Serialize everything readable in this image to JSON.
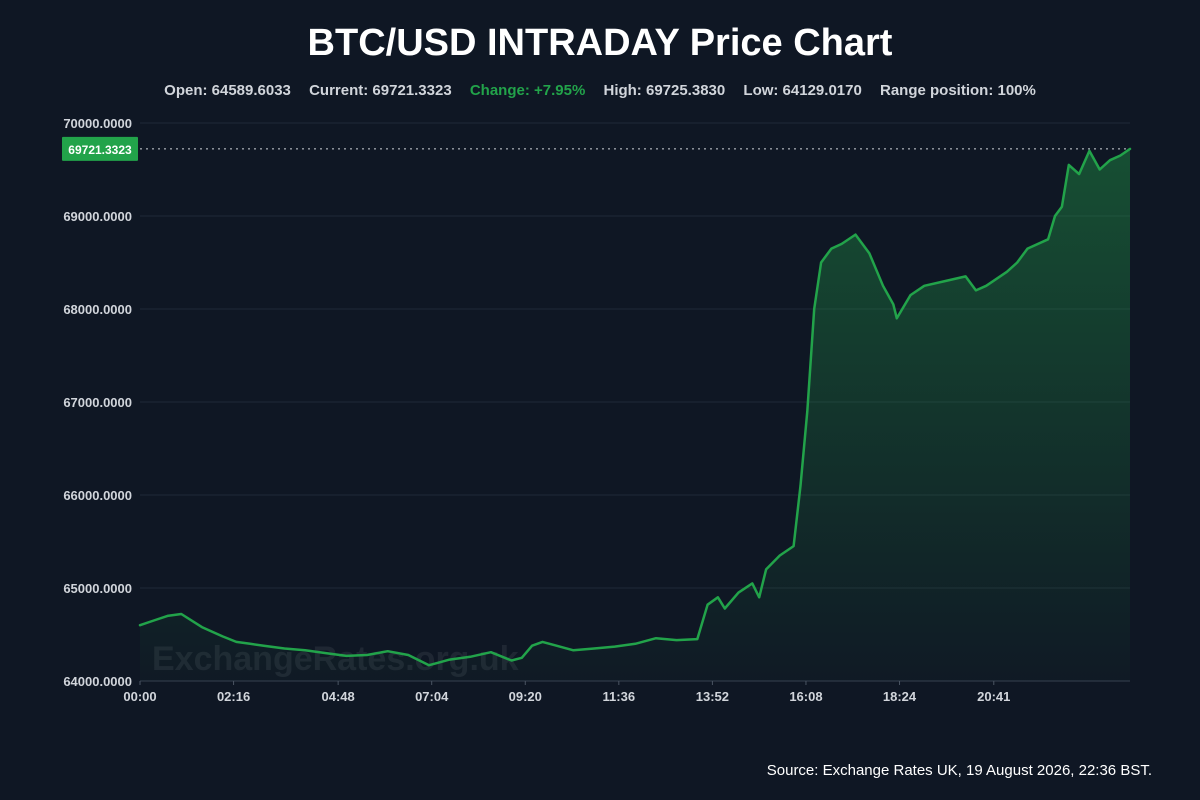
{
  "title": "BTC/USD INTRADAY Price Chart",
  "stats": {
    "open": "Open: 64589.6033",
    "current": "Current: 69721.3323",
    "change": "Change: +7.95%",
    "high": "High: 69725.3830",
    "low": "Low: 64129.0170",
    "range_position": "Range position: 100%"
  },
  "watermark": "ExchangeRates.org.uk",
  "source": "Source: Exchange Rates UK, 19 August 2026, 22:36 BST.",
  "colors": {
    "background": "#0f1724",
    "line": "#22a34a",
    "positive_change": "#22a34a",
    "grid": "#1f2937"
  },
  "chart_data": {
    "type": "area",
    "ylim": [
      64000,
      70000
    ],
    "xlim": [
      "00:00",
      "23:59"
    ],
    "y_ticks": [
      "64000.0000",
      "65000.0000",
      "66000.0000",
      "67000.0000",
      "68000.0000",
      "69000.0000",
      "70000.0000"
    ],
    "x_ticks": [
      "00:00",
      "02:16",
      "04:48",
      "07:04",
      "09:20",
      "11:36",
      "13:52",
      "16:08",
      "18:24",
      "20:41"
    ],
    "current_label": "69721.3323",
    "current_value": 69721.3323,
    "grid": true,
    "series": [
      {
        "x": [
          "00:00",
          "00:20",
          "00:40",
          "01:00",
          "01:30",
          "02:00",
          "02:20",
          "02:40",
          "03:00",
          "03:30",
          "04:00",
          "04:30",
          "05:00",
          "05:30",
          "06:00",
          "06:30",
          "07:00",
          "07:15",
          "07:30",
          "08:00",
          "08:30",
          "09:00",
          "09:15",
          "09:30",
          "09:45",
          "10:00",
          "10:30",
          "11:00",
          "11:30",
          "12:00",
          "12:30",
          "13:00",
          "13:30",
          "13:45",
          "14:00",
          "14:10",
          "14:30",
          "14:50",
          "15:00",
          "15:10",
          "15:30",
          "15:50",
          "16:00",
          "16:10",
          "16:20",
          "16:30",
          "16:45",
          "17:00",
          "17:20",
          "17:40",
          "18:00",
          "18:15",
          "18:20",
          "18:40",
          "19:00",
          "19:30",
          "20:00",
          "20:15",
          "20:30",
          "21:00",
          "21:15",
          "21:30",
          "22:00",
          "22:10",
          "22:20",
          "22:30",
          "22:45",
          "23:00",
          "23:15",
          "23:30",
          "23:45",
          "23:59"
        ],
        "y": [
          64600,
          64650,
          64700,
          64720,
          64580,
          64480,
          64420,
          64400,
          64380,
          64350,
          64330,
          64300,
          64270,
          64280,
          64320,
          64280,
          64170,
          64200,
          64230,
          64260,
          64310,
          64220,
          64250,
          64380,
          64420,
          64390,
          64330,
          64350,
          64370,
          64400,
          64460,
          64440,
          64450,
          64820,
          64900,
          64780,
          64950,
          65050,
          64900,
          65200,
          65350,
          65450,
          66100,
          66900,
          68000,
          68500,
          68650,
          68700,
          68800,
          68600,
          68250,
          68050,
          67900,
          68150,
          68250,
          68300,
          68350,
          68200,
          68250,
          68400,
          68500,
          68650,
          68750,
          69000,
          69100,
          69550,
          69450,
          69700,
          69500,
          69600,
          69650,
          69721.3323
        ]
      }
    ]
  }
}
